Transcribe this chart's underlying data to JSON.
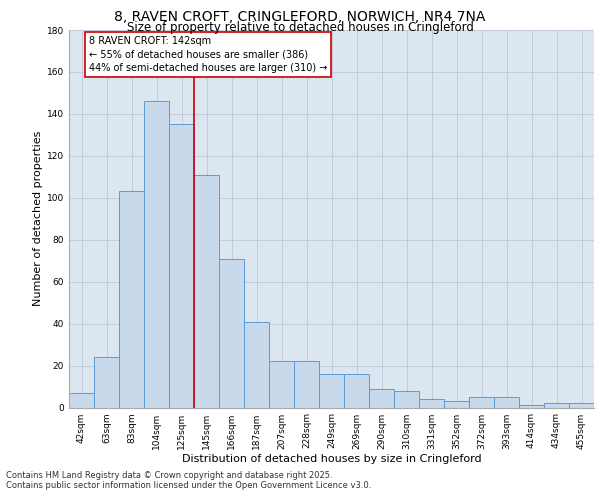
{
  "title_line1": "8, RAVEN CROFT, CRINGLEFORD, NORWICH, NR4 7NA",
  "title_line2": "Size of property relative to detached houses in Cringleford",
  "xlabel": "Distribution of detached houses by size in Cringleford",
  "ylabel": "Number of detached properties",
  "bar_labels": [
    "42sqm",
    "63sqm",
    "83sqm",
    "104sqm",
    "125sqm",
    "145sqm",
    "166sqm",
    "187sqm",
    "207sqm",
    "228sqm",
    "249sqm",
    "269sqm",
    "290sqm",
    "310sqm",
    "331sqm",
    "352sqm",
    "372sqm",
    "393sqm",
    "414sqm",
    "434sqm",
    "455sqm"
  ],
  "bar_values": [
    7,
    24,
    103,
    146,
    135,
    111,
    71,
    41,
    22,
    22,
    16,
    16,
    9,
    8,
    4,
    3,
    5,
    5,
    1,
    2,
    2
  ],
  "bar_color": "#c8d9eb",
  "bar_edge_color": "#5b9bd5",
  "property_line_x": 4.5,
  "property_line_color": "#cc0000",
  "annotation_text": "8 RAVEN CROFT: 142sqm\n← 55% of detached houses are smaller (386)\n44% of semi-detached houses are larger (310) →",
  "annotation_box_color": "#cc0000",
  "annotation_text_color": "#000000",
  "ylim": [
    0,
    180
  ],
  "yticks": [
    0,
    20,
    40,
    60,
    80,
    100,
    120,
    140,
    160,
    180
  ],
  "grid_color": "#c0c8d8",
  "background_color": "#dce6f1",
  "figure_bg": "#ffffff",
  "footer_line1": "Contains HM Land Registry data © Crown copyright and database right 2025.",
  "footer_line2": "Contains public sector information licensed under the Open Government Licence v3.0.",
  "title_fontsize": 10,
  "subtitle_fontsize": 8.5,
  "axis_label_fontsize": 8,
  "tick_fontsize": 6.5,
  "annotation_fontsize": 7,
  "footer_fontsize": 6
}
